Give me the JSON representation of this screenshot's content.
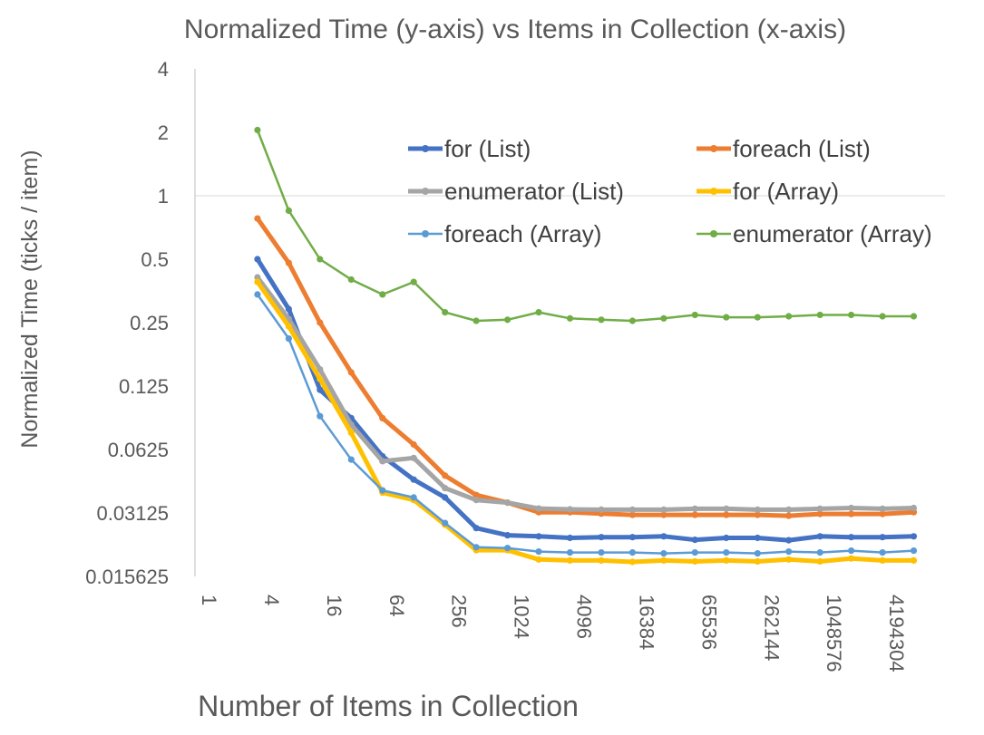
{
  "chart_data": {
    "type": "line",
    "title": "Normalized Time (y-axis) vs Items in Collection (x-axis)",
    "xlabel": "Number of Items in Collection",
    "ylabel": "Normalized Time (ticks / item)",
    "x_scale": "log2",
    "y_scale": "log2",
    "ylim": [
      0.015625,
      4
    ],
    "xlim": [
      1,
      16777216
    ],
    "grid": "horizontal at 1 only",
    "legend_position": "top-right",
    "y_ticks": [
      "0.015625",
      "0.03125",
      "0.0625",
      "0.125",
      "0.25",
      "0.5",
      "1",
      "2",
      "4"
    ],
    "x_ticks": [
      "1",
      "4",
      "16",
      "64",
      "256",
      "1024",
      "4096",
      "16384",
      "65536",
      "262144",
      "1048576",
      "4194304"
    ],
    "x": [
      4,
      8,
      16,
      32,
      64,
      128,
      256,
      512,
      1024,
      2048,
      4096,
      8192,
      16384,
      32768,
      65536,
      131072,
      262144,
      524288,
      1048576,
      2097152,
      4194304,
      8388608
    ],
    "series": [
      {
        "name": "for (List)",
        "color": "#4472C4",
        "width": 5,
        "values": [
          0.5,
          0.29,
          0.12,
          0.088,
          0.058,
          0.045,
          0.037,
          0.0265,
          0.0245,
          0.0242,
          0.0238,
          0.024,
          0.024,
          0.0242,
          0.0233,
          0.0238,
          0.0238,
          0.0232,
          0.0242,
          0.024,
          0.024,
          0.0242
        ]
      },
      {
        "name": "foreach (List)",
        "color": "#ED7D31",
        "width": 5,
        "values": [
          0.78,
          0.48,
          0.25,
          0.145,
          0.088,
          0.066,
          0.047,
          0.038,
          0.035,
          0.0315,
          0.0315,
          0.031,
          0.0306,
          0.0306,
          0.0306,
          0.0306,
          0.0306,
          0.0303,
          0.0309,
          0.0309,
          0.0309,
          0.0315
        ]
      },
      {
        "name": "enumerator (List)",
        "color": "#A5A5A5",
        "width": 5,
        "values": [
          0.41,
          0.26,
          0.15,
          0.082,
          0.055,
          0.057,
          0.041,
          0.036,
          0.035,
          0.0328,
          0.0325,
          0.0324,
          0.0324,
          0.0324,
          0.0327,
          0.0327,
          0.0324,
          0.0324,
          0.0327,
          0.033,
          0.0327,
          0.033
        ]
      },
      {
        "name": "for (Array)",
        "color": "#FFC000",
        "width": 5,
        "values": [
          0.39,
          0.24,
          0.135,
          0.075,
          0.039,
          0.036,
          0.0275,
          0.0208,
          0.0208,
          0.0188,
          0.0186,
          0.0186,
          0.0183,
          0.0186,
          0.0184,
          0.0186,
          0.0184,
          0.0188,
          0.0184,
          0.019,
          0.0186,
          0.0186
        ]
      },
      {
        "name": "foreach (Array)",
        "color": "#5B9BD5",
        "width": 2.5,
        "values": [
          0.34,
          0.21,
          0.09,
          0.056,
          0.04,
          0.037,
          0.028,
          0.0215,
          0.0213,
          0.0205,
          0.0203,
          0.0203,
          0.0203,
          0.0201,
          0.0203,
          0.0203,
          0.0201,
          0.0205,
          0.0203,
          0.0207,
          0.0203,
          0.0207
        ]
      },
      {
        "name": "enumerator (Array)",
        "color": "#70AD47",
        "width": 2.5,
        "values": [
          2.05,
          0.85,
          0.5,
          0.4,
          0.34,
          0.39,
          0.28,
          0.255,
          0.258,
          0.28,
          0.262,
          0.258,
          0.255,
          0.262,
          0.272,
          0.265,
          0.265,
          0.268,
          0.272,
          0.272,
          0.268,
          0.268
        ]
      }
    ]
  }
}
